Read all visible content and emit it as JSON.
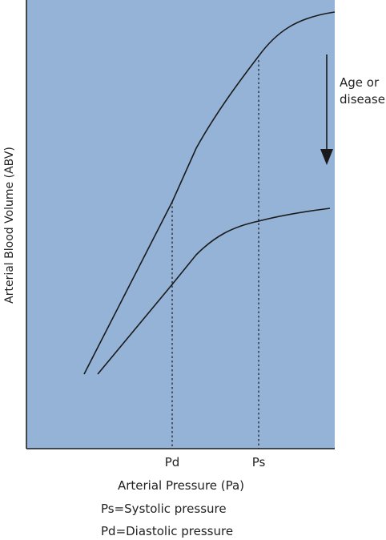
{
  "colors": {
    "plot_background": "#94b3d7",
    "line": "#1a1a1a",
    "text": "#222222"
  },
  "axes": {
    "y_label": "Arterial Blood Volume (ABV)",
    "x_label": "Arterial Pressure (Pa)",
    "x_ticks": {
      "pd": "Pd",
      "ps": "Ps"
    }
  },
  "annotation": {
    "line1": "Age or",
    "line2": "disease",
    "arrow_icon": "down-arrow-icon"
  },
  "legend": {
    "ps": "Ps=Systolic pressure",
    "pd": "Pd=Diastolic pressure"
  },
  "curves": [
    {
      "id": "upper-curve"
    },
    {
      "id": "lower-curve"
    }
  ]
}
